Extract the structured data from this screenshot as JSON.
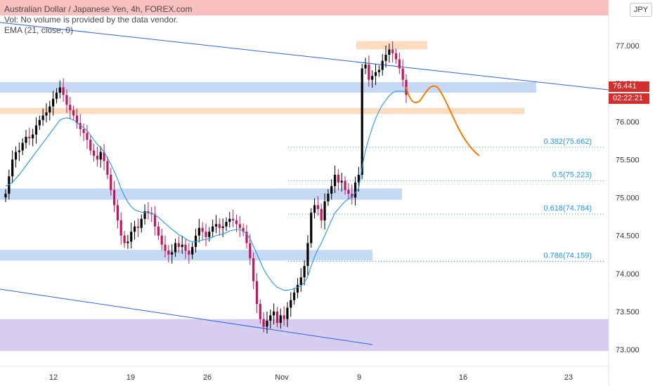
{
  "legend": {
    "title": "Australian Dollar / Japanese Yen, 4h, FOREX.com",
    "volume_note": "Vol: No volume is provided by the data vendor.",
    "ema_label": "EMA (21, close, 0)"
  },
  "currency_label": "JPY",
  "colors": {
    "candle_up": "#000000",
    "candle_down": "#c2185b",
    "ema": "#2196f3",
    "trendline": "#2962ff",
    "projection": "#f57c00",
    "fib_text": "#2196f3",
    "zone_blue": "#c5d9f5",
    "zone_orange": "#fbdcc0",
    "zone_purple": "#d7cdee",
    "zone_top_red": "#f8bfbf",
    "price_tag": "#d32f2f"
  },
  "chart_data": {
    "type": "candlestick",
    "symbol": "AUDJPY",
    "interval": "4h",
    "y_axis": {
      "ticks": [
        "77.000",
        "76.500",
        "76.000",
        "75.500",
        "75.000",
        "74.500",
        "74.000",
        "73.500",
        "73.000"
      ],
      "range": [
        72.8,
        77.5
      ]
    },
    "x_axis": {
      "ticks": [
        "12",
        "19",
        "26",
        "Nov",
        "9",
        "16",
        "23"
      ]
    },
    "current_price": "76.441",
    "countdown": "02:22:21",
    "fib_levels": [
      {
        "ratio": "0.382",
        "price": 75.662,
        "label": "0.382(75.662)"
      },
      {
        "ratio": "0.5",
        "price": 75.223,
        "label": "0.5(75.223)"
      },
      {
        "ratio": "0.618",
        "price": 74.784,
        "label": "0.618(74.784)"
      },
      {
        "ratio": "0.786",
        "price": 74.159,
        "label": "0.786(74.159)"
      }
    ],
    "zones": [
      {
        "kind": "resistance",
        "color": "zone_blue",
        "from": 76.38,
        "to": 76.52
      },
      {
        "kind": "support",
        "color": "zone_orange",
        "from": 76.1,
        "to": 76.18
      },
      {
        "kind": "support",
        "color": "zone_blue",
        "from": 74.97,
        "to": 75.12
      },
      {
        "kind": "support",
        "color": "zone_blue",
        "from": 74.17,
        "to": 74.31
      },
      {
        "kind": "demand",
        "color": "zone_purple",
        "from": 72.98,
        "to": 73.4
      },
      {
        "kind": "supply",
        "color": "zone_orange",
        "from": 76.95,
        "to": 77.06
      }
    ],
    "closes": [
      75.05,
      75.28,
      75.5,
      75.6,
      75.62,
      75.72,
      75.8,
      75.78,
      75.83,
      75.95,
      76.02,
      76.08,
      76.12,
      76.2,
      76.3,
      76.38,
      76.45,
      76.35,
      76.22,
      76.15,
      76.08,
      75.98,
      75.9,
      75.85,
      75.76,
      75.62,
      75.55,
      75.5,
      75.6,
      75.48,
      75.3,
      75.1,
      74.9,
      74.7,
      74.5,
      74.4,
      74.42,
      74.55,
      74.62,
      74.6,
      74.72,
      74.82,
      74.8,
      74.78,
      74.62,
      74.5,
      74.38,
      74.3,
      74.25,
      74.28,
      74.4,
      74.35,
      74.38,
      74.3,
      74.25,
      74.35,
      74.5,
      74.6,
      74.55,
      74.48,
      74.55,
      74.62,
      74.65,
      74.6,
      74.62,
      74.68,
      74.72,
      74.7,
      74.65,
      74.6,
      74.55,
      74.4,
      74.2,
      73.9,
      73.6,
      73.4,
      73.3,
      73.38,
      73.45,
      73.5,
      73.35,
      73.45,
      73.4,
      73.55,
      73.65,
      73.75,
      73.85,
      73.95,
      74.1,
      74.4,
      74.8,
      74.9,
      74.85,
      74.7,
      74.95,
      75.05,
      75.15,
      75.3,
      75.2,
      75.22,
      75.1,
      75.05,
      75.0,
      75.2,
      75.3,
      76.7,
      76.75,
      76.55,
      76.6,
      76.65,
      76.68,
      76.8,
      76.88,
      76.95,
      76.9,
      76.82,
      76.7,
      76.55,
      76.35
    ],
    "ema_values": [
      75.15,
      75.17,
      75.2,
      75.25,
      75.3,
      75.36,
      75.42,
      75.48,
      75.54,
      75.6,
      75.66,
      75.72,
      75.78,
      75.84,
      75.9,
      75.96,
      76.02,
      76.04,
      76.05,
      76.04,
      76.02,
      75.99,
      75.95,
      75.92,
      75.88,
      75.82,
      75.76,
      75.7,
      75.66,
      75.6,
      75.52,
      75.44,
      75.34,
      75.24,
      75.12,
      75.02,
      74.94,
      74.88,
      74.84,
      74.82,
      74.81,
      74.8,
      74.8,
      74.79,
      74.77,
      74.74,
      74.7,
      74.66,
      74.62,
      74.58,
      74.55,
      74.51,
      74.49,
      74.46,
      74.43,
      74.42,
      74.42,
      74.43,
      74.44,
      74.45,
      74.46,
      74.48,
      74.5,
      74.51,
      74.52,
      74.54,
      74.56,
      74.57,
      74.58,
      74.58,
      74.56,
      74.52,
      74.46,
      74.36,
      74.26,
      74.16,
      74.06,
      73.98,
      73.92,
      73.86,
      73.82,
      73.8,
      73.78,
      73.78,
      73.79,
      73.8,
      73.82,
      73.84,
      73.88,
      73.96,
      74.1,
      74.22,
      74.32,
      74.4,
      74.5,
      74.6,
      74.7,
      74.8,
      74.85,
      74.9,
      74.95,
      74.98,
      75.01,
      75.06,
      75.12,
      75.4,
      75.62,
      75.78,
      75.92,
      76.04,
      76.14,
      76.22,
      76.28,
      76.34,
      76.38,
      76.4,
      76.4,
      76.4,
      76.38
    ]
  }
}
